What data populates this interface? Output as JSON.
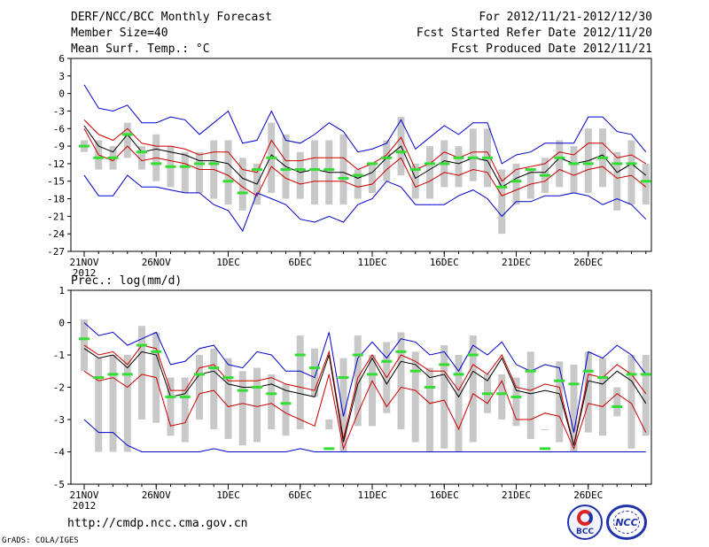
{
  "header": {
    "title": "DERF/NCC/BCC Monthly Forecast",
    "member_size": "Member Size=40",
    "period": "For 2012/11/21-2012/12/30",
    "started": "Fcst Started Refer Date 2012/11/20",
    "produced": "Fcst Produced Date 2012/11/21"
  },
  "footer": {
    "url": "http://cmdp.ncc.cma.gov.cn",
    "credit": "GrADS: COLA/IGES",
    "logo_bcc": "BCC",
    "logo_ncc": "NCC"
  },
  "colors": {
    "ensemble_max_min": "#0000cc",
    "spread_band": "#cc0000",
    "ensemble_mean": "#000000",
    "box": "#c8c8c8",
    "observed": "#33dd33"
  },
  "chart_data": [
    {
      "type": "line",
      "title": "Mean Surf. Temp.: °C",
      "ylim": [
        -27,
        6
      ],
      "yticks": [
        6,
        3,
        0,
        -3,
        -6,
        -9,
        -12,
        -15,
        -18,
        -21,
        -24,
        -27
      ],
      "xlim": [
        0,
        39
      ],
      "xticks": [
        {
          "x": 0,
          "label": "21NOV",
          "year": "2012"
        },
        {
          "x": 5,
          "label": "26NOV"
        },
        {
          "x": 10,
          "label": "1DEC"
        },
        {
          "x": 15,
          "label": "6DEC"
        },
        {
          "x": 20,
          "label": "11DEC"
        },
        {
          "x": 25,
          "label": "16DEC"
        },
        {
          "x": 30,
          "label": "21DEC"
        },
        {
          "x": 35,
          "label": "26DEC"
        }
      ],
      "series": [
        {
          "name": "max",
          "color": "#0000cc",
          "values": [
            1.5,
            -2.5,
            -3,
            -2,
            -5,
            -5,
            -4,
            -4.5,
            -7,
            -5,
            -3,
            -8.5,
            -8,
            -3,
            -8,
            -8.5,
            -7,
            -5,
            -6.5,
            -10,
            -9.5,
            -8.5,
            -4.5,
            -9.5,
            -7.5,
            -5.5,
            -7,
            -5,
            -5,
            -12,
            -10.5,
            -10,
            -8.5,
            -8.5,
            -8.5,
            -4,
            -4,
            -6.5,
            -7,
            -10
          ]
        },
        {
          "name": "upper",
          "color": "#cc0000",
          "values": [
            -4.5,
            -7,
            -8,
            -6,
            -8.5,
            -9,
            -9,
            -9.5,
            -10.5,
            -10,
            -10,
            -13,
            -13.5,
            -8,
            -11.5,
            -11.5,
            -11,
            -11,
            -11,
            -13,
            -12,
            -10.5,
            -7.5,
            -13,
            -12,
            -10,
            -11,
            -10,
            -10,
            -15,
            -13,
            -12.5,
            -12,
            -10,
            -10.5,
            -8.5,
            -8.5,
            -11,
            -10.5,
            -12
          ]
        },
        {
          "name": "mean",
          "color": "#000000",
          "values": [
            -5.5,
            -9,
            -10,
            -7,
            -10,
            -9.5,
            -10,
            -10.5,
            -11.5,
            -11.5,
            -12,
            -14.5,
            -15.5,
            -10.5,
            -12.5,
            -13.5,
            -13,
            -13.5,
            -13.5,
            -14.5,
            -13.5,
            -11,
            -9,
            -14.5,
            -13,
            -11.5,
            -12,
            -11,
            -11.5,
            -16,
            -14.5,
            -13.5,
            -13.5,
            -11,
            -12,
            -11.5,
            -10.5,
            -13.5,
            -12,
            -14
          ]
        },
        {
          "name": "lower",
          "color": "#cc0000",
          "values": [
            -6,
            -10.5,
            -11.5,
            -9,
            -11.5,
            -11,
            -11.5,
            -12,
            -13,
            -13,
            -14,
            -16,
            -17.5,
            -12.5,
            -14.5,
            -15.5,
            -15,
            -15,
            -15,
            -16,
            -15.5,
            -13,
            -11,
            -16,
            -15,
            -13.5,
            -14,
            -13,
            -13.5,
            -17.5,
            -16.5,
            -15.5,
            -15,
            -13,
            -14,
            -13,
            -12.5,
            -14.5,
            -14,
            -16
          ]
        },
        {
          "name": "min",
          "color": "#0000cc",
          "values": [
            -14,
            -17.5,
            -17.5,
            -14,
            -16,
            -16,
            -16.5,
            -17,
            -17,
            -19,
            -20,
            -23.5,
            -17,
            -18,
            -19,
            -21.5,
            -22,
            -21,
            -22,
            -19,
            -18,
            -15,
            -16,
            -19,
            -19,
            -19,
            -17.5,
            -16.5,
            -18,
            -21,
            -18.5,
            -18.5,
            -17.5,
            -17.5,
            -17,
            -17.5,
            -19,
            -18,
            -19,
            -21.5
          ]
        }
      ],
      "boxes": {
        "name": "ensemble distribution",
        "color": "#c8c8c8",
        "low": [
          -10,
          -13,
          -13,
          -11,
          -13,
          -15,
          -16,
          -17,
          -17,
          -18,
          -19,
          -20,
          -19,
          -17,
          -18,
          -18,
          -19,
          -19,
          -19,
          -18,
          -17,
          -15,
          -14,
          -18,
          -18,
          -16,
          -16,
          -15,
          -16,
          -24,
          -19,
          -18,
          -17,
          -16,
          -17,
          -17,
          -16,
          -20,
          -19,
          -19
        ],
        "high": [
          -8,
          -8,
          -9,
          -5,
          -9,
          -7,
          -9,
          -10,
          -10,
          -8,
          -8,
          -11,
          -12,
          -5,
          -7,
          -10,
          -8,
          -8,
          -7,
          -13,
          -12,
          -8,
          -4,
          -12,
          -9,
          -8,
          -9,
          -6,
          -6,
          -13,
          -12,
          -13,
          -11,
          -8,
          -9,
          -6,
          -6,
          -10,
          -8,
          -12
        ]
      },
      "observed": {
        "name": "observed",
        "color": "#33dd33",
        "values": [
          -9,
          -11,
          -11,
          -7,
          -10,
          -12,
          -12.5,
          -12.5,
          -12,
          -12,
          -15,
          -17,
          -13,
          -11,
          -13,
          -13,
          -13,
          -13,
          -14.5,
          -14,
          -12,
          -11,
          -10,
          -13,
          -12,
          -12,
          -11,
          -11,
          -11,
          -16,
          -15,
          -13,
          -14,
          -11,
          -12,
          -12,
          -11,
          -12,
          -12,
          -15
        ]
      }
    },
    {
      "type": "line",
      "title": "Prec.: log(mm/d)",
      "ylim": [
        -5,
        1
      ],
      "yticks": [
        1,
        0,
        -1,
        -2,
        -3,
        -4,
        -5
      ],
      "xlim": [
        0,
        39
      ],
      "xticks": [
        {
          "x": 0,
          "label": "21NOV",
          "year": "2012"
        },
        {
          "x": 5,
          "label": "26NOV"
        },
        {
          "x": 10,
          "label": "1DEC"
        },
        {
          "x": 15,
          "label": "6DEC"
        },
        {
          "x": 20,
          "label": "11DEC"
        },
        {
          "x": 25,
          "label": "16DEC"
        },
        {
          "x": 30,
          "label": "21DEC"
        },
        {
          "x": 35,
          "label": "26DEC"
        }
      ],
      "series": [
        {
          "name": "max",
          "color": "#0000cc",
          "values": [
            0,
            -0.4,
            -0.3,
            -0.7,
            -0.5,
            -0.3,
            -1.3,
            -1.2,
            -0.8,
            -0.7,
            -1.3,
            -1.4,
            -0.9,
            -1,
            -1.5,
            -1.5,
            -1.7,
            -0.3,
            -2.9,
            -1.1,
            -0.6,
            -1.1,
            -0.5,
            -0.6,
            -1,
            -0.9,
            -1.5,
            -0.7,
            -1,
            -0.6,
            -1.3,
            -1.5,
            -1.3,
            -1.4,
            -3.4,
            -0.9,
            -1.1,
            -0.7,
            -1,
            -1.6
          ]
        },
        {
          "name": "upper",
          "color": "#cc0000",
          "values": [
            -0.7,
            -1,
            -0.9,
            -1.3,
            -0.7,
            -0.8,
            -2.1,
            -2.1,
            -1.4,
            -1.3,
            -1.8,
            -1.8,
            -1.8,
            -1.7,
            -1.9,
            -2,
            -2.1,
            -0.9,
            -3.6,
            -1.7,
            -1,
            -1.7,
            -1,
            -1.2,
            -1.5,
            -1.5,
            -2.1,
            -1.3,
            -1.6,
            -1,
            -2,
            -2.1,
            -1.9,
            -2,
            -3.8,
            -1.6,
            -1.7,
            -1.3,
            -1.6,
            -2.2
          ]
        },
        {
          "name": "mean",
          "color": "#000000",
          "values": [
            -0.8,
            -1.1,
            -1,
            -1.4,
            -0.9,
            -1,
            -2.3,
            -2.2,
            -1.6,
            -1.5,
            -1.9,
            -2,
            -2,
            -1.9,
            -2.1,
            -2.2,
            -2.3,
            -1,
            -3.7,
            -1.9,
            -1.1,
            -1.9,
            -1.2,
            -1.3,
            -1.7,
            -1.6,
            -2.3,
            -1.5,
            -1.8,
            -1.1,
            -2.1,
            -2.2,
            -2.1,
            -2.2,
            -3.8,
            -1.8,
            -1.9,
            -1.5,
            -1.8,
            -2.5
          ]
        },
        {
          "name": "lower",
          "color": "#cc0000",
          "values": [
            -1.5,
            -1.8,
            -1.7,
            -2,
            -1.6,
            -1.7,
            -3.2,
            -3.1,
            -2.2,
            -2.1,
            -2.6,
            -2.5,
            -2.6,
            -2.5,
            -2.8,
            -3,
            -3.2,
            -1.6,
            -3.9,
            -2.8,
            -1.8,
            -2.6,
            -2,
            -2.1,
            -2.5,
            -2.4,
            -3.3,
            -2.2,
            -2.5,
            -1.8,
            -3,
            -3,
            -2.8,
            -2.9,
            -3.9,
            -2.5,
            -2.6,
            -2.2,
            -2.5,
            -3.4
          ]
        },
        {
          "name": "min",
          "color": "#0000cc",
          "values": [
            -3,
            -3.4,
            -3.4,
            -3.8,
            -4,
            -4,
            -4,
            -4,
            -4,
            -3.9,
            -4,
            -4,
            -4,
            -4,
            -4,
            -3.9,
            -4,
            -4,
            -4,
            -4,
            -4,
            -4,
            -4,
            -4,
            -4,
            -4,
            -4,
            -4,
            -4,
            -4,
            -4,
            -4,
            -4,
            -4,
            -4,
            -4,
            -4,
            -4,
            -4,
            -4
          ]
        }
      ],
      "boxes": {
        "name": "ensemble distribution",
        "color": "#c8c8c8",
        "low": [
          -1.5,
          -4,
          -4,
          -4,
          -3,
          -3.1,
          -3.5,
          -3.7,
          -3,
          -3.3,
          -3.6,
          -3.8,
          -3.7,
          -3.3,
          -3.5,
          -3.3,
          -2.3,
          -3,
          -4,
          -3.2,
          -3.2,
          -2.8,
          -3.3,
          -3.7,
          -4,
          -3.9,
          -4,
          -3.7,
          -2.8,
          -3,
          -3.2,
          -3.6,
          -3.3,
          -3.7,
          -4,
          -3.4,
          -3.5,
          -2.9,
          -3.9,
          -3.5
        ]
      },
      "observed": {
        "name": "observed",
        "color": "#33dd33",
        "values": [
          -0.5,
          -1.7,
          -1.6,
          -1.6,
          -0.7,
          -0.9,
          -2.3,
          -2.3,
          -1.6,
          -1.4,
          -1.7,
          -2.1,
          -2,
          -2.2,
          -2.5,
          -1,
          -1.4,
          -3.9,
          -1.7,
          -1,
          -1.6,
          -1.2,
          -0.9,
          -1.5,
          -2,
          -1.3,
          -1.6,
          -1,
          -2.2,
          -2.2,
          -2.3,
          -1.5,
          -3.9,
          -1.8,
          -1.9,
          -1.5,
          -1.7,
          -2.6,
          -1.6,
          -1.6
        ]
      }
    }
  ]
}
